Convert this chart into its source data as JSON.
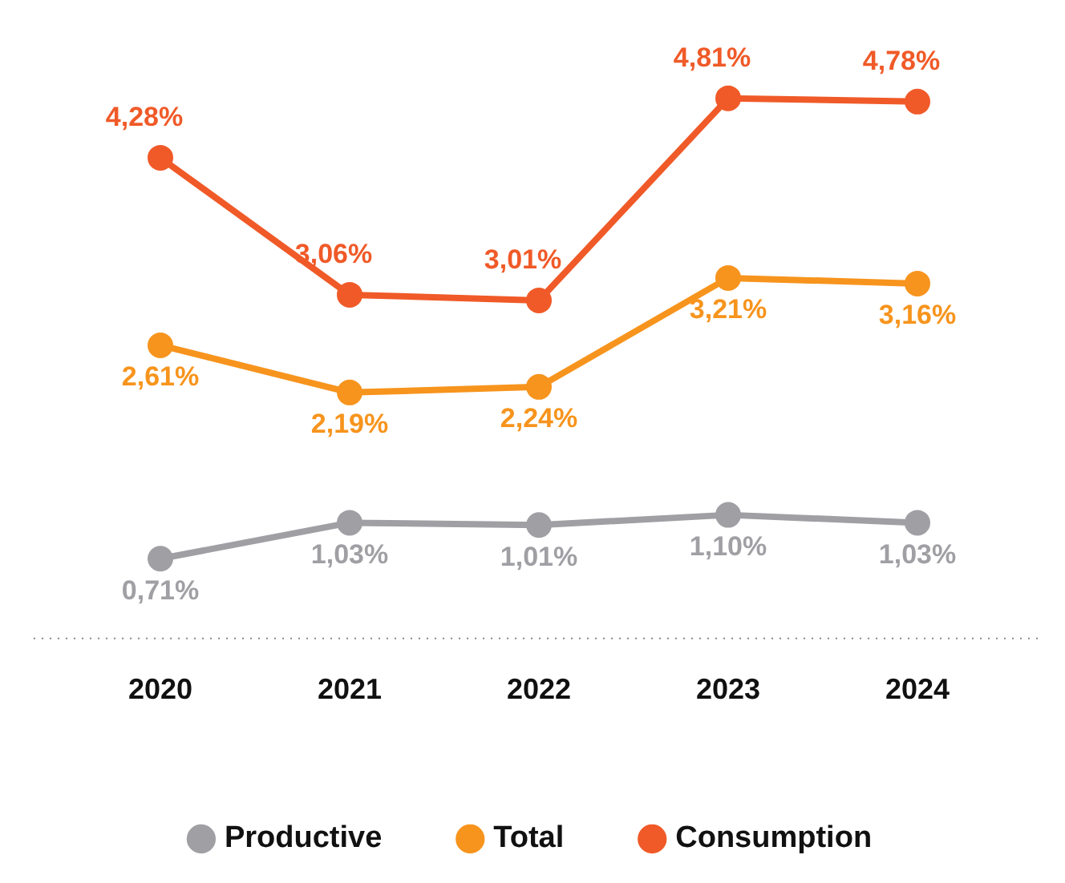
{
  "chart_data": {
    "type": "line",
    "categories": [
      "2020",
      "2021",
      "2022",
      "2023",
      "2024"
    ],
    "series": [
      {
        "name": "Productive",
        "color": "#a09fa4",
        "values": [
          0.71,
          1.03,
          1.01,
          1.1,
          1.03
        ],
        "value_labels": [
          "0,71%",
          "1,03%",
          "1,01%",
          "1,10%",
          "1,03%"
        ]
      },
      {
        "name": "Total",
        "color": "#f7941d",
        "values": [
          2.61,
          2.19,
          2.24,
          3.21,
          3.16
        ],
        "value_labels": [
          "2,61%",
          "2,19%",
          "2,24%",
          "3,21%",
          "3,16%"
        ]
      },
      {
        "name": "Consumption",
        "color": "#f05a28",
        "values": [
          4.28,
          3.06,
          3.01,
          4.81,
          4.78
        ],
        "value_labels": [
          "4,28%",
          "3,06%",
          "3,01%",
          "4,81%",
          "4,78%"
        ]
      }
    ],
    "relative": false,
    "grid": false,
    "legend": "bottom",
    "marker": "circle",
    "line_style": "solid"
  }
}
